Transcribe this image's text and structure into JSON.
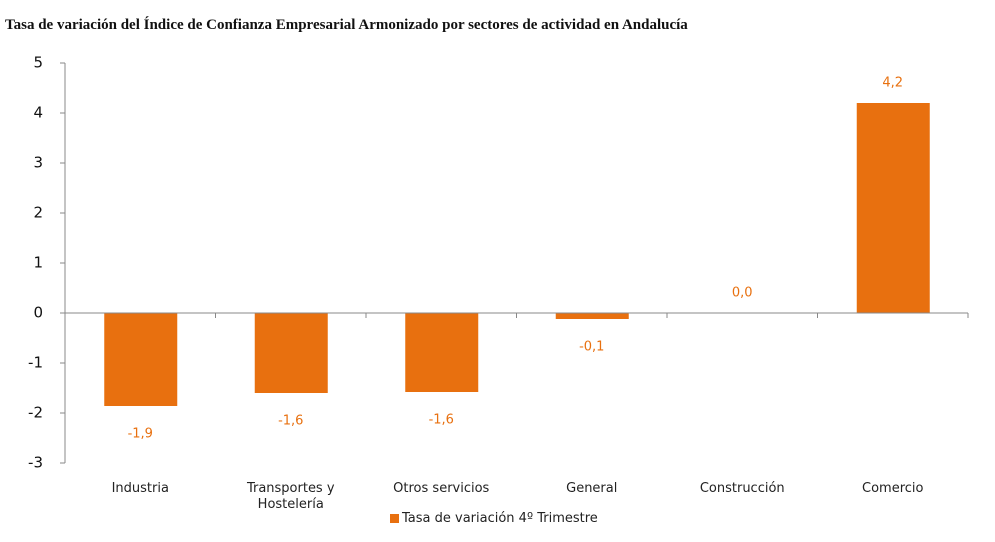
{
  "chart_data": {
    "type": "bar",
    "title": "Tasa de variación del Índice de Confianza Empresarial Armonizado por sectores de actividad en Andalucía",
    "categories": [
      "Industria",
      "Transportes y Hostelería",
      "Otros servicios",
      "General",
      "Construcción",
      "Comercio"
    ],
    "series": [
      {
        "name": "Tasa de variación 4º Trimestre",
        "color": "#e8700f",
        "values": [
          -1.86,
          -1.6,
          -1.58,
          -0.12,
          0.0,
          4.2
        ],
        "value_labels": [
          "-1,9",
          "-1,6",
          "-1,6",
          "-0,1",
          "0,0",
          "4,2"
        ]
      }
    ],
    "ylim": [
      -3,
      5
    ],
    "yticks": [
      -3,
      -2,
      -1,
      0,
      1,
      2,
      3,
      4,
      5
    ],
    "grid": false,
    "legend": "bottom"
  }
}
